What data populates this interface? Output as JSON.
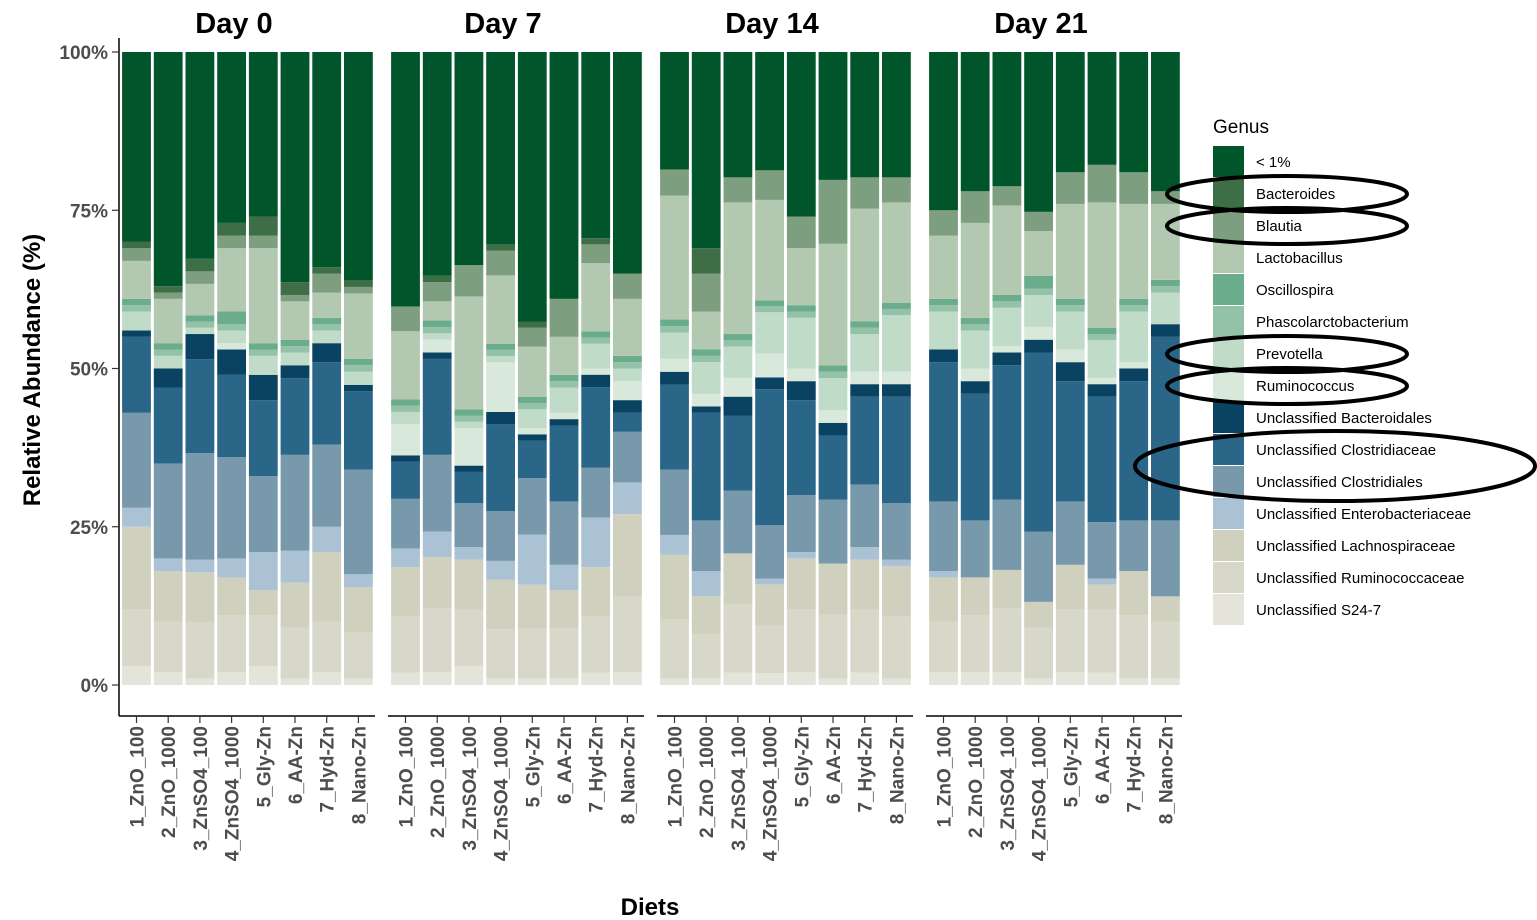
{
  "chart_data": {
    "type": "bar",
    "stacked": true,
    "normalized": true,
    "xlabel": "Diets",
    "ylabel": "Relative Abundance (%)",
    "ylim": [
      0,
      100
    ],
    "yticks": [
      "0%",
      "25%",
      "50%",
      "75%",
      "100%"
    ],
    "categories": [
      "1_ZnO_100",
      "2_ZnO_1000",
      "3_ZnSO4_100",
      "4_ZnSO4_1000",
      "5_Gly-Zn",
      "6_AA-Zn",
      "7_Hyd-Zn",
      "8_Nano-Zn"
    ],
    "legend": {
      "title": "Genus",
      "position": "right"
    },
    "series_order_bottom_to_top": [
      "Unclassified S24-7",
      "Unclassified Ruminococcaceae",
      "Unclassified Lachnospiraceae",
      "Unclassified Enterobacteriaceae",
      "Unclassified Clostridiales",
      "Unclassified Clostridiaceae",
      "Unclassified Bacteroidales",
      "Ruminococcus",
      "Prevotella",
      "Phascolarctobacterium",
      "Oscillospira",
      "Lactobacillus",
      "Blautia",
      "Bacteroides",
      "< 1%"
    ],
    "series": [
      {
        "name": "< 1%",
        "color": "#00552a"
      },
      {
        "name": "Bacteroides",
        "color": "#3d6e45"
      },
      {
        "name": "Blautia",
        "color": "#7e9e80"
      },
      {
        "name": "Lactobacillus",
        "color": "#b3c8b0"
      },
      {
        "name": "Oscillospira",
        "color": "#6aac8c"
      },
      {
        "name": "Phascolarctobacterium",
        "color": "#93c2a8"
      },
      {
        "name": "Prevotella",
        "color": "#c0dcc8"
      },
      {
        "name": "Ruminococcus",
        "color": "#d8e8da"
      },
      {
        "name": "Unclassified Bacteroidales",
        "color": "#0a4262"
      },
      {
        "name": "Unclassified Clostridiaceae",
        "color": "#2a6688"
      },
      {
        "name": "Unclassified Clostridiales",
        "color": "#7898ac"
      },
      {
        "name": "Unclassified Enterobacteriaceae",
        "color": "#aac2d4"
      },
      {
        "name": "Unclassified Lachnospiraceae",
        "color": "#d0d0be"
      },
      {
        "name": "Unclassified Ruminococcaceae",
        "color": "#d8d8ca"
      },
      {
        "name": "Unclassified S24-7",
        "color": "#e4e4da"
      }
    ],
    "panels": [
      {
        "title": "Day 0",
        "values": [
          [
            3,
            9,
            13,
            3,
            15,
            12,
            1,
            0,
            3,
            1,
            1,
            6,
            2,
            1,
            30
          ],
          [
            2,
            8,
            8,
            2,
            15,
            12,
            3,
            0,
            2,
            1,
            1,
            7,
            1,
            1,
            37
          ],
          [
            1,
            9,
            8,
            2,
            17,
            15,
            4,
            0,
            1,
            1,
            1,
            5,
            2,
            2,
            33
          ],
          [
            2,
            9,
            6,
            3,
            16,
            13,
            4,
            1,
            2,
            1,
            2,
            10,
            2,
            2,
            27
          ],
          [
            3,
            8,
            4,
            6,
            12,
            12,
            4,
            0,
            3,
            1,
            1,
            15,
            2,
            3,
            26
          ],
          [
            1,
            8,
            7,
            5,
            15,
            12,
            2,
            0,
            2,
            1,
            1,
            6,
            1,
            2,
            36
          ],
          [
            2,
            8,
            11,
            4,
            13,
            13,
            3,
            0,
            2,
            1,
            1,
            4,
            3,
            1,
            34
          ],
          [
            1,
            7,
            7,
            2,
            16,
            12,
            1,
            0,
            2,
            1,
            1,
            10,
            1,
            1,
            35
          ]
        ]
      },
      {
        "title": "Day 7",
        "values": [
          [
            2,
            9,
            8,
            3,
            8,
            6,
            1,
            5,
            2,
            1,
            1,
            11,
            4,
            0,
            41
          ],
          [
            2,
            10,
            8,
            4,
            12,
            15,
            1,
            2,
            1,
            1,
            1,
            3,
            3,
            1,
            35
          ],
          [
            3,
            9,
            8,
            2,
            7,
            5,
            1,
            6,
            1,
            1,
            1,
            18,
            5,
            0,
            34
          ],
          [
            1,
            8,
            8,
            3,
            8,
            14,
            2,
            8,
            1,
            1,
            1,
            11,
            4,
            1,
            31
          ],
          [
            1,
            8,
            7,
            8,
            9,
            6,
            1,
            1,
            3,
            1,
            1,
            8,
            3,
            1,
            43
          ],
          [
            1,
            8,
            6,
            4,
            10,
            12,
            1,
            1,
            4,
            1,
            1,
            6,
            6,
            0,
            39
          ],
          [
            2,
            9,
            8,
            8,
            8,
            13,
            2,
            1,
            4,
            1,
            1,
            11,
            3,
            1,
            30
          ],
          [
            2,
            12,
            13,
            5,
            8,
            3,
            2,
            3,
            2,
            1,
            1,
            9,
            4,
            0,
            35
          ]
        ]
      },
      {
        "title": "Day 14",
        "values": [
          [
            1,
            9,
            10,
            3,
            10,
            13,
            2,
            2,
            4,
            1,
            1,
            19,
            4,
            0,
            18
          ],
          [
            1,
            7,
            6,
            4,
            8,
            17,
            1,
            2,
            5,
            1,
            1,
            6,
            6,
            4,
            31
          ],
          [
            2,
            11,
            8,
            0,
            10,
            12,
            3,
            3,
            5,
            1,
            1,
            21,
            4,
            0,
            20
          ],
          [
            2,
            8,
            7,
            1,
            9,
            23,
            2,
            4,
            7,
            1,
            1,
            17,
            5,
            0,
            20
          ],
          [
            2,
            10,
            8,
            1,
            9,
            15,
            3,
            2,
            8,
            1,
            1,
            9,
            5,
            0,
            26
          ],
          [
            1,
            10,
            8,
            0,
            10,
            10,
            2,
            2,
            5,
            1,
            1,
            19,
            10,
            0,
            20
          ],
          [
            2,
            10,
            8,
            2,
            10,
            14,
            2,
            2,
            6,
            1,
            1,
            18,
            5,
            0,
            20
          ],
          [
            1,
            10,
            8,
            1,
            9,
            17,
            2,
            2,
            9,
            1,
            1,
            16,
            4,
            0,
            20
          ]
        ]
      },
      {
        "title": "Day 21",
        "values": [
          [
            2,
            8,
            7,
            1,
            11,
            22,
            2,
            0,
            6,
            1,
            1,
            10,
            4,
            0,
            25
          ],
          [
            2,
            9,
            6,
            0,
            9,
            20,
            2,
            2,
            6,
            1,
            1,
            15,
            5,
            0,
            22
          ],
          [
            2,
            10,
            6,
            0,
            11,
            21,
            2,
            1,
            6,
            1,
            1,
            14,
            3,
            0,
            21
          ],
          [
            1,
            8,
            4,
            0,
            11,
            28,
            2,
            2,
            5,
            1,
            2,
            7,
            3,
            0,
            25
          ],
          [
            2,
            10,
            7,
            0,
            10,
            19,
            3,
            2,
            6,
            1,
            1,
            15,
            5,
            0,
            19
          ],
          [
            2,
            10,
            4,
            1,
            9,
            20,
            2,
            1,
            6,
            1,
            1,
            20,
            6,
            0,
            18
          ],
          [
            1,
            10,
            7,
            0,
            8,
            22,
            2,
            1,
            8,
            1,
            1,
            15,
            5,
            0,
            19
          ],
          [
            1,
            9,
            4,
            0,
            12,
            29,
            2,
            0,
            5,
            1,
            1,
            12,
            2,
            0,
            22
          ]
        ]
      }
    ],
    "annotations": {
      "type": "ellipse",
      "highlighted_legend_entries": [
        "Bacteroides",
        "Blautia",
        "Prevotella",
        "Ruminococcus",
        "Unclassified Clostridiaceae",
        "Unclassified Clostridiales"
      ]
    }
  }
}
